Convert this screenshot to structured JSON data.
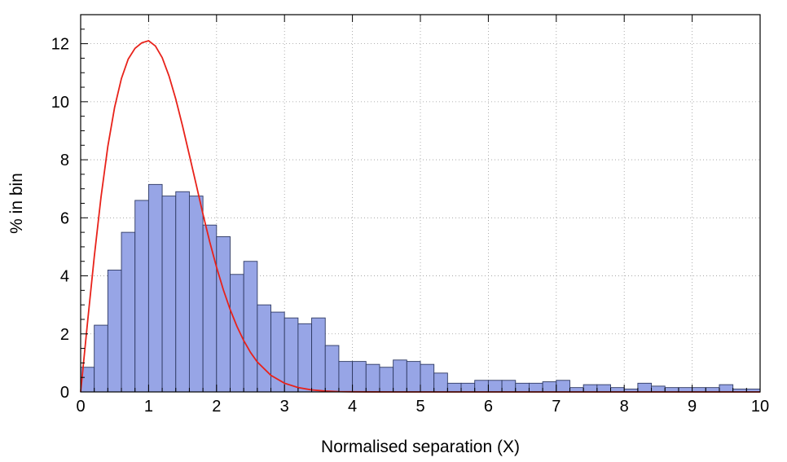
{
  "chart_data": {
    "type": "bar",
    "title": "",
    "xlabel": "Normalised separation (X)",
    "ylabel": "% in bin",
    "xlim": [
      0,
      10
    ],
    "ylim": [
      0,
      13
    ],
    "x_ticks": [
      "0",
      "1",
      "2",
      "3",
      "4",
      "5",
      "6",
      "7",
      "8",
      "9",
      "10"
    ],
    "y_ticks": [
      "0",
      "2",
      "4",
      "6",
      "8",
      "10",
      "12"
    ],
    "grid": true,
    "bin_width": 0.2,
    "bin_starts": [
      0.0,
      0.2,
      0.4,
      0.6,
      0.8,
      1.0,
      1.2,
      1.4,
      1.6,
      1.8,
      2.0,
      2.2,
      2.4,
      2.6,
      2.8,
      3.0,
      3.2,
      3.4,
      3.6,
      3.8,
      4.0,
      4.2,
      4.4,
      4.6,
      4.8,
      5.0,
      5.2,
      5.4,
      5.6,
      5.8,
      6.0,
      6.2,
      6.4,
      6.6,
      6.8,
      7.0,
      7.2,
      7.4,
      7.6,
      7.8,
      8.0,
      8.2,
      8.4,
      8.6,
      8.8,
      9.0,
      9.2,
      9.4,
      9.6,
      9.8
    ],
    "values": [
      0.85,
      2.3,
      4.2,
      5.5,
      6.6,
      7.15,
      6.75,
      6.9,
      6.75,
      5.75,
      5.35,
      4.05,
      4.5,
      3.0,
      2.75,
      2.55,
      2.35,
      2.55,
      1.6,
      1.05,
      1.05,
      0.95,
      0.85,
      1.1,
      1.05,
      0.95,
      0.65,
      0.3,
      0.3,
      0.4,
      0.4,
      0.4,
      0.3,
      0.3,
      0.35,
      0.4,
      0.15,
      0.25,
      0.25,
      0.15,
      0.1,
      0.3,
      0.2,
      0.15,
      0.15,
      0.15,
      0.15,
      0.25,
      0.1,
      0.1
    ],
    "curve": {
      "x": [
        0.0,
        0.1,
        0.2,
        0.3,
        0.4,
        0.5,
        0.6,
        0.7,
        0.8,
        0.9,
        1.0,
        1.1,
        1.2,
        1.3,
        1.4,
        1.5,
        1.6,
        1.7,
        1.8,
        1.9,
        2.0,
        2.1,
        2.2,
        2.3,
        2.4,
        2.5,
        2.6,
        2.8,
        3.0,
        3.2,
        3.4,
        3.6,
        3.8,
        4.0,
        4.3,
        4.6,
        5.0
      ],
      "y": [
        0.0,
        2.37,
        4.65,
        6.72,
        8.46,
        9.81,
        10.8,
        11.47,
        11.84,
        12.03,
        12.1,
        11.92,
        11.52,
        10.89,
        10.09,
        9.16,
        8.16,
        7.15,
        6.13,
        5.17,
        4.3,
        3.52,
        2.84,
        2.26,
        1.77,
        1.36,
        1.03,
        0.57,
        0.3,
        0.15,
        0.07,
        0.03,
        0.01,
        0.005,
        0.002,
        0.0,
        0.0
      ],
      "color": "#e8221a"
    },
    "bar_color": "#97a5e6",
    "bar_edge_color": "#2f3a63"
  }
}
